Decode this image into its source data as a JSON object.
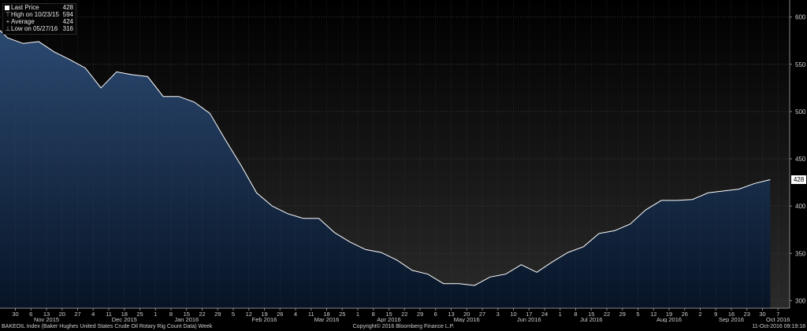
{
  "chart_data": {
    "type": "area",
    "legend": {
      "placement": "top-left",
      "items": [
        {
          "label": "Last Price",
          "value": "428"
        },
        {
          "label": "High on 10/23/15",
          "value": "594"
        },
        {
          "label": "Average",
          "value": "424"
        },
        {
          "label": "Low on 05/27/16",
          "value": "316"
        }
      ]
    },
    "last_price_label": "428",
    "ylim": [
      292,
      618
    ],
    "y_ticks": [
      300,
      350,
      400,
      450,
      500,
      550,
      600
    ],
    "x_tick_labels": [
      "30",
      "6",
      "13",
      "20",
      "27",
      "4",
      "11",
      "18",
      "25",
      "1",
      "8",
      "15",
      "22",
      "29",
      "5",
      "12",
      "19",
      "26",
      "4",
      "11",
      "18",
      "25",
      "1",
      "8",
      "15",
      "22",
      "29",
      "6",
      "13",
      "20",
      "27",
      "3",
      "10",
      "17",
      "24",
      "1",
      "8",
      "15",
      "22",
      "29",
      "5",
      "12",
      "19",
      "26",
      "2",
      "9",
      "16",
      "23",
      "30",
      "7"
    ],
    "month_labels": [
      {
        "label": "Nov 2015",
        "index": 2
      },
      {
        "label": "Dec 2015",
        "index": 7
      },
      {
        "label": "Jan 2016",
        "index": 11
      },
      {
        "label": "Feb 2016",
        "index": 16
      },
      {
        "label": "Mar 2016",
        "index": 20
      },
      {
        "label": "Apr 2016",
        "index": 24
      },
      {
        "label": "May 2016",
        "index": 29
      },
      {
        "label": "Jun 2016",
        "index": 33
      },
      {
        "label": "Jul 2016",
        "index": 37
      },
      {
        "label": "Aug 2016",
        "index": 42
      },
      {
        "label": "Sep 2016",
        "index": 46
      },
      {
        "label": "Oct 2016",
        "index": 49
      }
    ],
    "x_start_offset": -1.5,
    "values": [
      594,
      578,
      572,
      574,
      563,
      555,
      546,
      525,
      542,
      539,
      537,
      516,
      516,
      510,
      498,
      470,
      443,
      414,
      400,
      392,
      387,
      387,
      372,
      362,
      354,
      351,
      343,
      332,
      328,
      318,
      318,
      316,
      325,
      328,
      338,
      330,
      341,
      351,
      357,
      371,
      374,
      381,
      396,
      406,
      406,
      407,
      414,
      416,
      418,
      424,
      428
    ],
    "grid": true,
    "colors": {
      "area_top": "#2c4a72",
      "area_bottom": "#071426",
      "line": "#ffffff",
      "background_top": "#000000",
      "background_bottom": "#2a2a2a"
    }
  },
  "footer": {
    "left": "BAKEOIL Index (Baker Hughes United States Crude Oil Rotary Rig Count Data)  Week",
    "center": "Copyright© 2016 Bloomberg Finance L.P.",
    "right": "11-Oct-2016 09:19:18"
  }
}
